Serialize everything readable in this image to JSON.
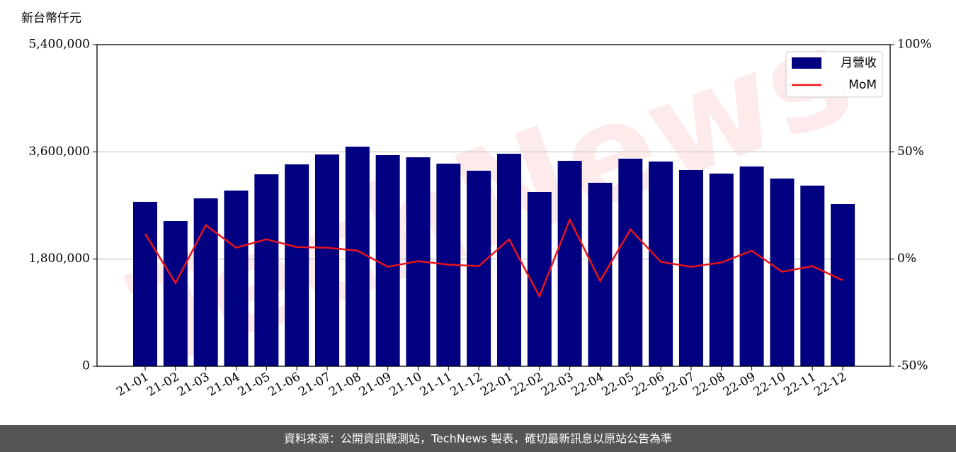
{
  "chart_data": {
    "type": "bar",
    "y_label": "新台幣仟元",
    "watermark": "TechNews",
    "source": "資料來源：公開資訊觀測站，TechNews 製表，確切最新訊息以原站公告為準",
    "categories": [
      "21-01",
      "21-02",
      "21-03",
      "21-04",
      "21-05",
      "21-06",
      "21-07",
      "21-08",
      "21-09",
      "21-10",
      "21-11",
      "21-12",
      "22-01",
      "22-02",
      "22-03",
      "22-04",
      "22-05",
      "22-06",
      "22-07",
      "22-08",
      "22-09",
      "22-10",
      "22-11",
      "22-12"
    ],
    "series": [
      {
        "name": "月營收",
        "type": "bar",
        "color": "#000080",
        "values": [
          2760000,
          2438000,
          2819000,
          2950000,
          3223000,
          3390000,
          3556000,
          3687000,
          3545000,
          3509000,
          3402000,
          3283000,
          3568000,
          2926000,
          3449000,
          3081000,
          3485000,
          3437000,
          3295000,
          3235000,
          3354000,
          3152000,
          3033000,
          2724000
        ]
      },
      {
        "name": "MoM",
        "type": "line",
        "axis": "y2",
        "color": "#e8141c",
        "values": [
          11.8,
          -11.2,
          15.8,
          5.3,
          9.2,
          5.6,
          5.3,
          3.9,
          -3.6,
          -1.0,
          -2.6,
          -3.3,
          9.2,
          -17.4,
          18.4,
          -10.2,
          13.8,
          -1.3,
          -3.6,
          -1.6,
          3.9,
          -5.9,
          -3.3,
          -9.9
        ]
      }
    ],
    "ylim": [
      0,
      5400000
    ],
    "yticks": [
      0,
      {
        "value": 1800000,
        "label": "1,800,000"
      },
      {
        "value": 3600000,
        "label": "3,600,000"
      },
      {
        "value": 5400000,
        "label": "5,400,000"
      }
    ],
    "y2lim": [
      -50,
      100
    ],
    "y2ticks": [
      {
        "value": -50,
        "label": "-50%"
      },
      {
        "value": 0,
        "label": "0%"
      },
      {
        "value": 50,
        "label": "50%"
      },
      {
        "value": 100,
        "label": "100%"
      }
    ],
    "grid": true,
    "legend": "upper right"
  }
}
